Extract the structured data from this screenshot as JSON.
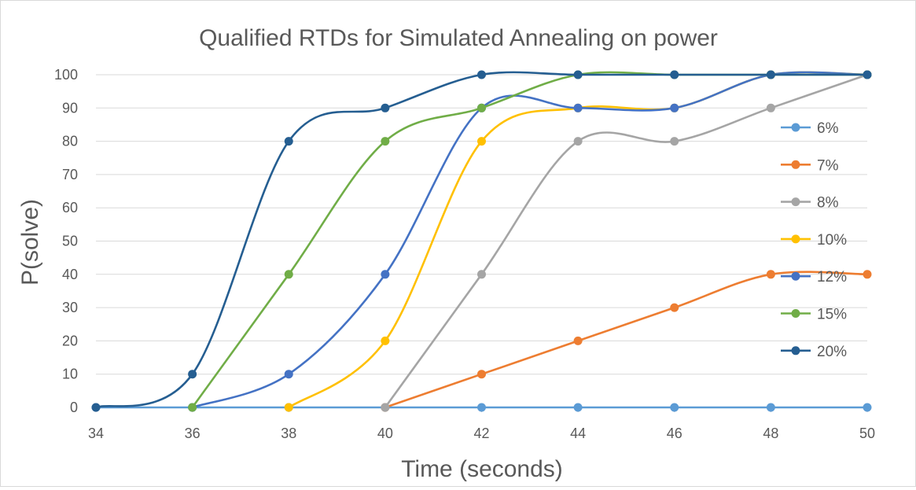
{
  "chart_data": {
    "type": "line",
    "title": "Qualified RTDs for Simulated Annealing on power",
    "xlabel": "Time (seconds)",
    "ylabel": "P(solve)",
    "xlim": [
      34,
      50
    ],
    "ylim": [
      0,
      100
    ],
    "x_ticks": [
      34,
      36,
      38,
      40,
      42,
      44,
      46,
      48,
      50
    ],
    "y_ticks": [
      0,
      10,
      20,
      30,
      40,
      50,
      60,
      70,
      80,
      90,
      100
    ],
    "grid": "horizontal",
    "legend_position": "right",
    "smooth": true,
    "series": [
      {
        "name": "6%",
        "color": "#5b9bd5",
        "x": [
          34,
          36,
          38,
          40,
          42,
          44,
          46,
          48,
          50
        ],
        "values": [
          0,
          0,
          0,
          0,
          0,
          0,
          0,
          0,
          0
        ]
      },
      {
        "name": "7%",
        "color": "#ed7d31",
        "x": [
          40,
          42,
          44,
          46,
          48,
          50
        ],
        "values": [
          0,
          10,
          20,
          30,
          40,
          40
        ]
      },
      {
        "name": "8%",
        "color": "#a5a5a5",
        "x": [
          40,
          42,
          44,
          46,
          48,
          50
        ],
        "values": [
          0,
          40,
          80,
          80,
          90,
          100
        ]
      },
      {
        "name": "10%",
        "color": "#ffc000",
        "x": [
          38,
          40,
          42,
          44,
          46,
          48,
          50
        ],
        "values": [
          0,
          20,
          80,
          90,
          90,
          100,
          100
        ]
      },
      {
        "name": "12%",
        "color": "#4472c4",
        "x": [
          36,
          38,
          40,
          42,
          44,
          46,
          48,
          50
        ],
        "values": [
          0,
          10,
          40,
          90,
          90,
          90,
          100,
          100
        ]
      },
      {
        "name": "15%",
        "color": "#70ad47",
        "x": [
          36,
          38,
          40,
          42,
          44,
          46,
          48,
          50
        ],
        "values": [
          0,
          40,
          80,
          90,
          100,
          100,
          100,
          100
        ]
      },
      {
        "name": "20%",
        "color": "#255e91",
        "x": [
          34,
          36,
          38,
          40,
          42,
          44,
          46,
          48,
          50
        ],
        "values": [
          0,
          10,
          80,
          90,
          100,
          100,
          100,
          100,
          100
        ]
      }
    ]
  }
}
